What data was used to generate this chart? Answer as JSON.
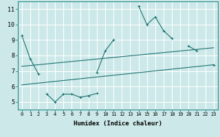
{
  "title": "",
  "xlabel": "Humidex (Indice chaleur)",
  "ylabel": "",
  "bg_color": "#cce8e8",
  "grid_color": "#ffffff",
  "line_color": "#1a7070",
  "xlim": [
    -0.5,
    23.5
  ],
  "ylim": [
    4.5,
    11.5
  ],
  "yticks": [
    5,
    6,
    7,
    8,
    9,
    10,
    11
  ],
  "xticks": [
    0,
    1,
    2,
    3,
    4,
    5,
    6,
    7,
    8,
    9,
    10,
    11,
    12,
    13,
    14,
    15,
    16,
    17,
    18,
    19,
    20,
    21,
    22,
    23
  ],
  "series": [
    {
      "x": [
        0,
        1,
        2,
        3,
        4,
        5,
        6,
        7,
        8,
        9,
        10,
        11,
        12,
        13,
        14,
        15,
        16,
        17,
        18,
        19,
        20,
        21,
        22,
        23
      ],
      "y": [
        9.3,
        7.8,
        6.8,
        null,
        null,
        null,
        null,
        null,
        null,
        6.9,
        8.3,
        9.0,
        null,
        null,
        11.2,
        10.0,
        10.5,
        9.6,
        9.1,
        null,
        8.6,
        8.3,
        null,
        7.4
      ],
      "no_markers": false
    },
    {
      "x": [
        0,
        1,
        2,
        3,
        4,
        5,
        6,
        7,
        8,
        9,
        10,
        11,
        12,
        13,
        14,
        15,
        16,
        17,
        18,
        19,
        20,
        21,
        22,
        23
      ],
      "y": [
        null,
        null,
        null,
        5.5,
        5.0,
        5.5,
        5.5,
        5.3,
        5.4,
        5.55,
        null,
        null,
        null,
        null,
        null,
        null,
        null,
        null,
        null,
        null,
        null,
        null,
        null,
        null
      ],
      "no_markers": false
    },
    {
      "x": [
        0,
        23
      ],
      "y": [
        7.3,
        8.5
      ],
      "no_markers": true
    },
    {
      "x": [
        0,
        23
      ],
      "y": [
        6.1,
        7.4
      ],
      "no_markers": true
    }
  ]
}
